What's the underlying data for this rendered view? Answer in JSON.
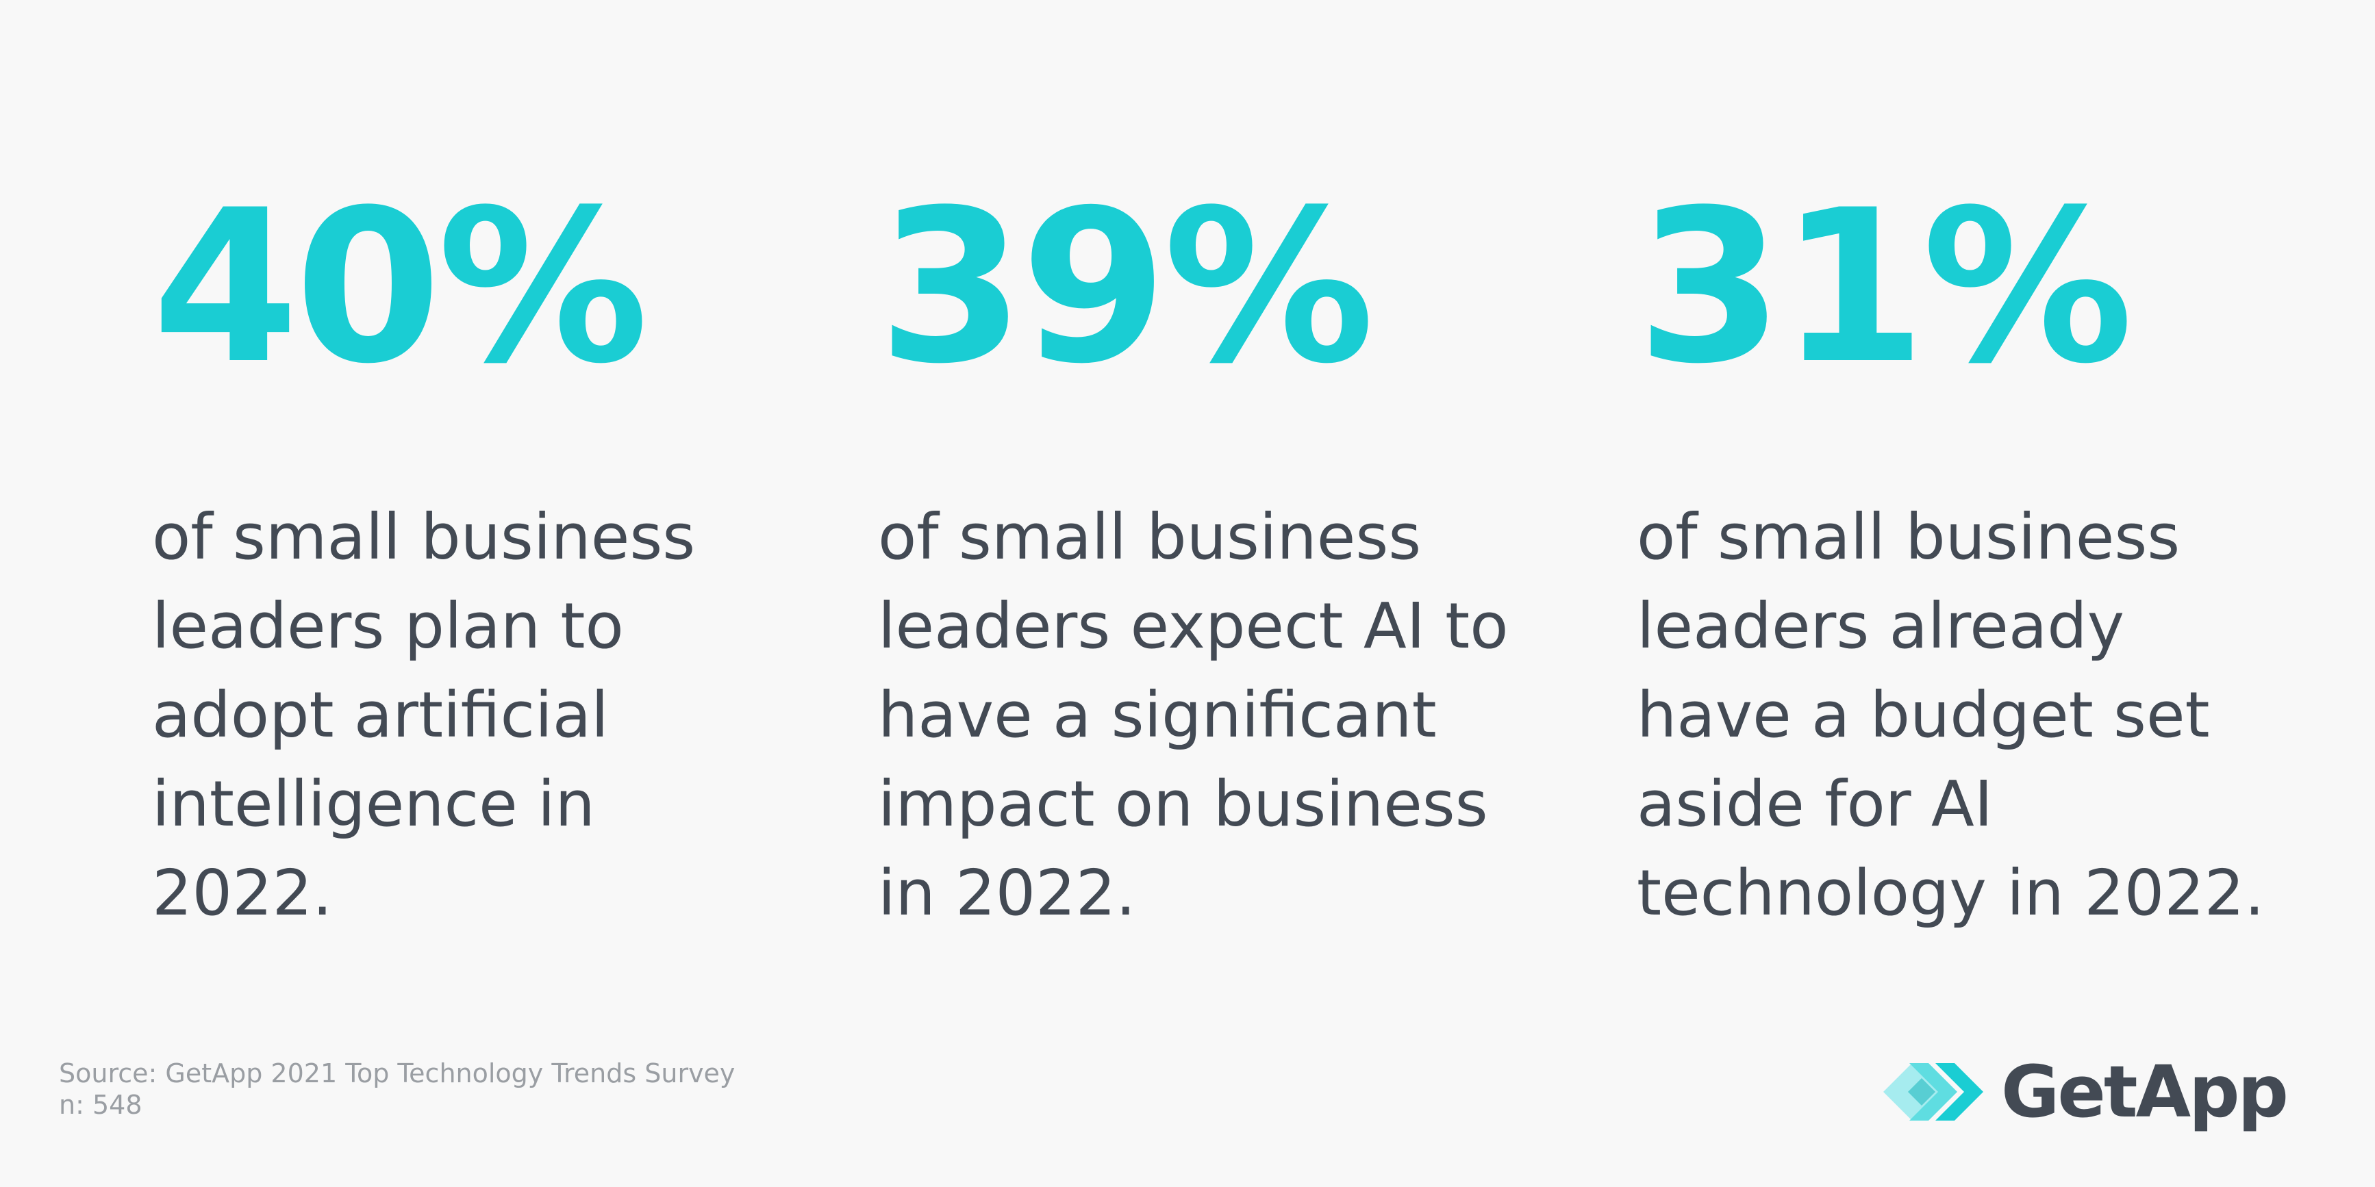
{
  "stats": [
    {
      "value": "40%",
      "lines": [
        "of small business",
        "leaders plan to",
        "adopt artificial",
        "intelligence in",
        "2022."
      ]
    },
    {
      "value": "39%",
      "lines": [
        "of small business",
        "leaders expect AI to",
        "have a significant",
        "impact on business",
        "in 2022."
      ]
    },
    {
      "value": "31%",
      "lines": [
        "of small business",
        "leaders already",
        "have a budget set",
        "aside for AI",
        "technology in 2022."
      ]
    }
  ],
  "footer": {
    "source": "Source: GetApp 2021 Top Technology Trends Survey",
    "sample": "n: 548"
  },
  "logo": {
    "text": "GetApp",
    "icon": "getapp-chevrons-icon"
  },
  "colors": {
    "accent": "#1acdd3",
    "text": "#434a54",
    "muted": "#9a9ea3",
    "background": "#f8f8f8"
  }
}
